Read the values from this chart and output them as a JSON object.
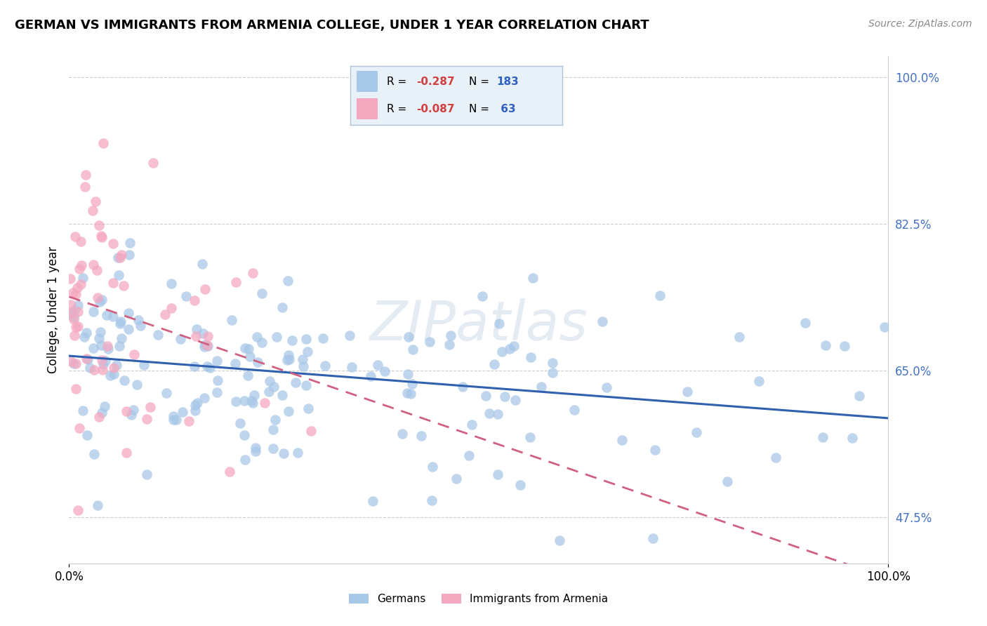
{
  "title": "GERMAN VS IMMIGRANTS FROM ARMENIA COLLEGE, UNDER 1 YEAR CORRELATION CHART",
  "source": "Source: ZipAtlas.com",
  "ylabel": "College, Under 1 year",
  "xlim": [
    0.0,
    100.0
  ],
  "ylim": [
    42.0,
    102.5
  ],
  "yticks": [
    47.5,
    65.0,
    82.5,
    100.0
  ],
  "xticks": [
    0.0,
    100.0
  ],
  "german_R": -0.287,
  "german_N": 183,
  "armenia_R": -0.087,
  "armenia_N": 63,
  "german_color": "#a8c8e8",
  "armenia_color": "#f4a8c0",
  "german_line_color": "#3060b0",
  "armenia_line_color": "#d06080",
  "background_color": "#ffffff",
  "legend_box_color": "#e8f0f8",
  "legend_border_color": "#b0c4d8",
  "watermark_color": "#ccd8e8",
  "watermark_alpha": 0.5,
  "grid_color": "#cccccc",
  "ytick_color": "#4472c4",
  "title_fontsize": 13,
  "source_fontsize": 10,
  "tick_fontsize": 12,
  "ylabel_fontsize": 12,
  "legend_fontsize": 11,
  "watermark_fontsize": 56
}
